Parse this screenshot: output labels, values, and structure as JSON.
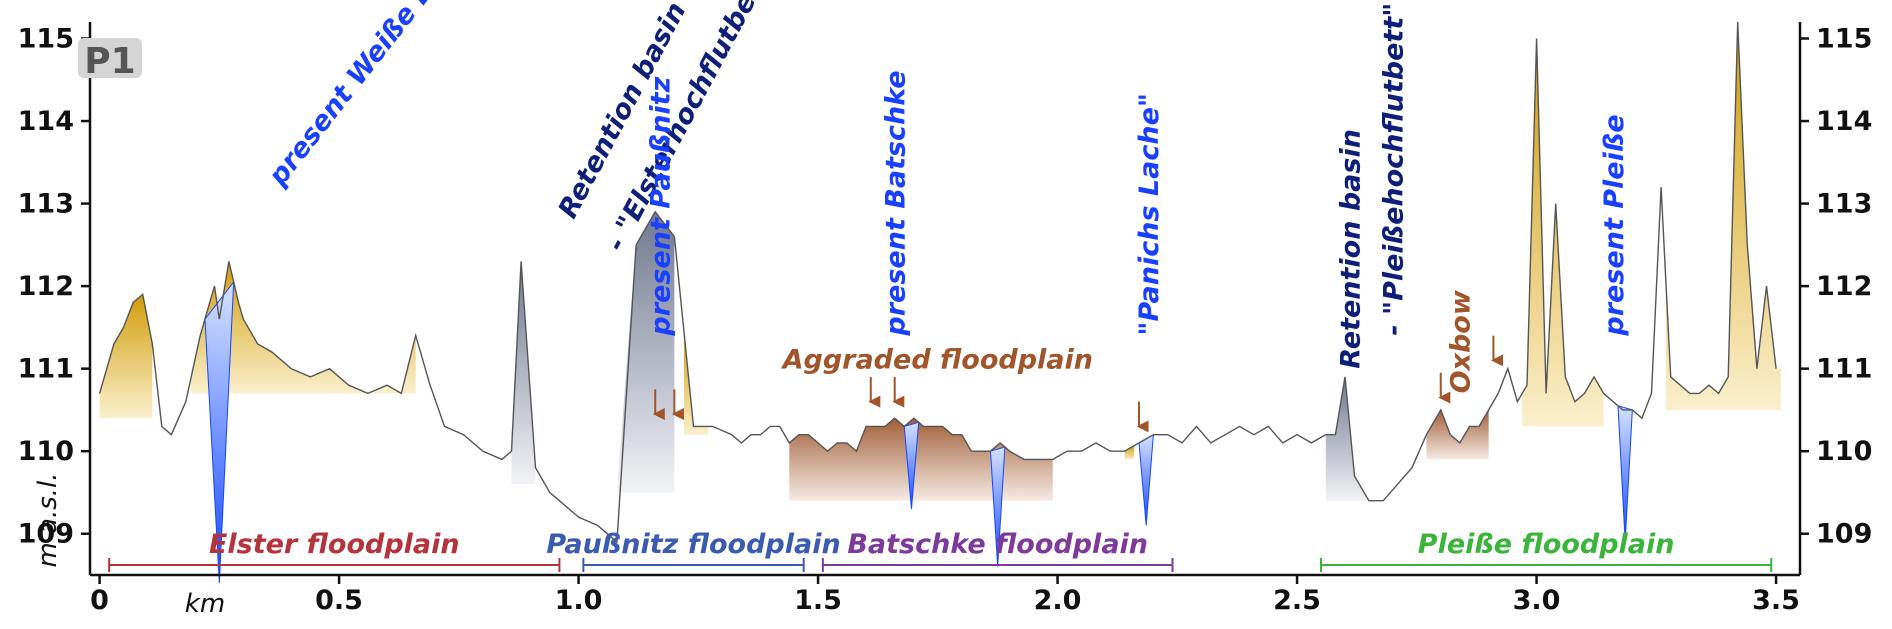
{
  "chart_data": {
    "type": "area",
    "panel_label": "P1",
    "xlabel": "km",
    "ylabel": "m a.s.l.",
    "xlim": [
      -0.02,
      3.55
    ],
    "ylim": [
      108.5,
      115.2
    ],
    "x_ticks": [
      "0",
      "0.5",
      "1.0",
      "1.5",
      "2.0",
      "2.5",
      "3.0",
      "3.5"
    ],
    "y_ticks": [
      "109",
      "110",
      "111",
      "112",
      "113",
      "114",
      "115"
    ],
    "grid": false,
    "profile": {
      "x": [
        0.0,
        0.03,
        0.05,
        0.07,
        0.09,
        0.11,
        0.13,
        0.15,
        0.18,
        0.21,
        0.24,
        0.25,
        0.27,
        0.29,
        0.3,
        0.33,
        0.36,
        0.4,
        0.44,
        0.48,
        0.52,
        0.56,
        0.6,
        0.63,
        0.66,
        0.69,
        0.72,
        0.76,
        0.8,
        0.84,
        0.86,
        0.88,
        0.91,
        0.94,
        0.96,
        1.0,
        1.04,
        1.08,
        1.12,
        1.16,
        1.2,
        1.24,
        1.28,
        1.32,
        1.34,
        1.36,
        1.38,
        1.4,
        1.42,
        1.44,
        1.46,
        1.48,
        1.5,
        1.52,
        1.54,
        1.56,
        1.58,
        1.6,
        1.62,
        1.64,
        1.66,
        1.68,
        1.7,
        1.72,
        1.74,
        1.76,
        1.78,
        1.8,
        1.82,
        1.84,
        1.86,
        1.88,
        1.9,
        1.93,
        1.96,
        1.99,
        2.02,
        2.05,
        2.08,
        2.11,
        2.14,
        2.17,
        2.2,
        2.23,
        2.26,
        2.29,
        2.32,
        2.35,
        2.38,
        2.41,
        2.44,
        2.47,
        2.5,
        2.53,
        2.56,
        2.58,
        2.6,
        2.62,
        2.65,
        2.68,
        2.71,
        2.74,
        2.77,
        2.8,
        2.82,
        2.84,
        2.86,
        2.88,
        2.9,
        2.92,
        2.94,
        2.96,
        2.98,
        3.0,
        3.02,
        3.04,
        3.06,
        3.08,
        3.1,
        3.12,
        3.14,
        3.16,
        3.18,
        3.2,
        3.22,
        3.24,
        3.26,
        3.28,
        3.3,
        3.32,
        3.34,
        3.36,
        3.38,
        3.4,
        3.42,
        3.44,
        3.46,
        3.48,
        3.5
      ],
      "y": [
        110.7,
        111.3,
        111.5,
        111.8,
        111.9,
        111.3,
        110.3,
        110.2,
        110.6,
        111.4,
        112.0,
        111.6,
        112.3,
        111.8,
        111.6,
        111.3,
        111.2,
        111.0,
        110.9,
        111.0,
        110.8,
        110.7,
        110.8,
        110.7,
        111.4,
        110.8,
        110.3,
        110.2,
        110.0,
        109.9,
        110.0,
        112.3,
        109.8,
        109.5,
        109.4,
        109.2,
        109.1,
        108.9,
        112.5,
        112.9,
        112.6,
        110.3,
        110.3,
        110.2,
        110.1,
        110.2,
        110.2,
        110.3,
        110.3,
        110.1,
        110.2,
        110.2,
        110.1,
        110.0,
        110.1,
        110.1,
        110.0,
        110.3,
        110.3,
        110.3,
        110.4,
        110.3,
        110.4,
        110.3,
        110.3,
        110.3,
        110.2,
        110.2,
        110.0,
        110.0,
        110.0,
        110.1,
        110.0,
        109.9,
        109.9,
        109.9,
        110.0,
        110.0,
        110.1,
        110.0,
        110.0,
        110.1,
        110.2,
        110.2,
        110.1,
        110.3,
        110.1,
        110.2,
        110.3,
        110.2,
        110.3,
        110.1,
        110.2,
        110.1,
        110.2,
        110.2,
        110.9,
        109.7,
        109.4,
        109.4,
        109.6,
        109.8,
        110.2,
        110.5,
        110.2,
        110.1,
        110.3,
        110.3,
        110.5,
        110.7,
        111.0,
        110.6,
        110.8,
        115.0,
        110.7,
        113.0,
        110.9,
        110.6,
        110.7,
        110.9,
        110.7,
        110.6,
        110.5,
        110.5,
        110.4,
        110.7,
        113.2,
        110.9,
        110.8,
        110.7,
        110.7,
        110.8,
        110.7,
        110.9,
        115.2,
        112.5,
        111.0,
        112.0,
        111.0
      ]
    },
    "channels": [
      {
        "name": "present Weiße Elster",
        "x0": 0.22,
        "x1": 0.28,
        "bottom": 108.4
      },
      {
        "name": "present Paußnitz",
        "x0": 1.68,
        "x1": 1.71,
        "bottom": 109.3
      },
      {
        "name": "present Batschke",
        "x0": 1.86,
        "x1": 1.89,
        "bottom": 108.6
      },
      {
        "name": "\"Panichs Lache\"",
        "x0": 2.17,
        "x1": 2.2,
        "bottom": 109.1
      },
      {
        "name": "present Pleiße",
        "x0": 3.17,
        "x1": 3.2,
        "bottom": 108.9
      }
    ],
    "annotations": [
      {
        "text": "present Weiße Elster",
        "x": 0.38,
        "y": 113.2,
        "color": "#1a40ff",
        "rotate": -52
      },
      {
        "text": "Retention basin",
        "x": 0.99,
        "y": 112.8,
        "color": "#0e1f78",
        "rotate": -62
      },
      {
        "text": "- \"Elsterhochflutbett\"",
        "x": 1.09,
        "y": 112.4,
        "color": "#0e1f78",
        "rotate": -62
      },
      {
        "text": "present Paußnitz",
        "x": 1.19,
        "y": 111.4,
        "color": "#1a40ff",
        "rotate": -90
      },
      {
        "text": "present Batschke",
        "x": 1.68,
        "y": 111.4,
        "color": "#1a40ff",
        "rotate": -90
      },
      {
        "text": "\"Panichs Lache\"",
        "x": 2.21,
        "y": 111.4,
        "color": "#1a40ff",
        "rotate": -90
      },
      {
        "text": "Retention basin",
        "x": 2.63,
        "y": 111.0,
        "color": "#0e1f78",
        "rotate": -90
      },
      {
        "text": "- \"Pleißehochflutbett\"",
        "x": 2.72,
        "y": 111.4,
        "color": "#0e1f78",
        "rotate": -90
      },
      {
        "text": "Oxbow",
        "x": 2.86,
        "y": 110.7,
        "color": "#a0552a",
        "rotate": -90
      },
      {
        "text": "present Pleiße",
        "x": 3.18,
        "y": 111.4,
        "color": "#1a40ff",
        "rotate": -90
      },
      {
        "text": "Aggraded floodplain",
        "x": 1.75,
        "y": 111.0,
        "color": "#a0552a",
        "rotate": 0
      }
    ],
    "reaches": [
      {
        "name": "Elster floodplain",
        "x0": 0.02,
        "x1": 0.96,
        "color": "#b5343c"
      },
      {
        "name": "Paußnitz floodplain",
        "x0": 1.01,
        "x1": 1.47,
        "color": "#3a5bb0"
      },
      {
        "name": "Batschke floodplain",
        "x0": 1.51,
        "x1": 2.24,
        "color": "#7d3a9a"
      },
      {
        "name": "Pleiße floodplain",
        "x0": 2.55,
        "x1": 3.49,
        "color": "#3cb43c"
      }
    ],
    "colors": {
      "elevated_fill": "#d8a515",
      "retention_fill": "#7f8aa0",
      "aggraded_fill": "#a66a45",
      "channel_fill": "#1d59ff",
      "profile_line": "#555555",
      "arrow": "#a0552a"
    }
  }
}
